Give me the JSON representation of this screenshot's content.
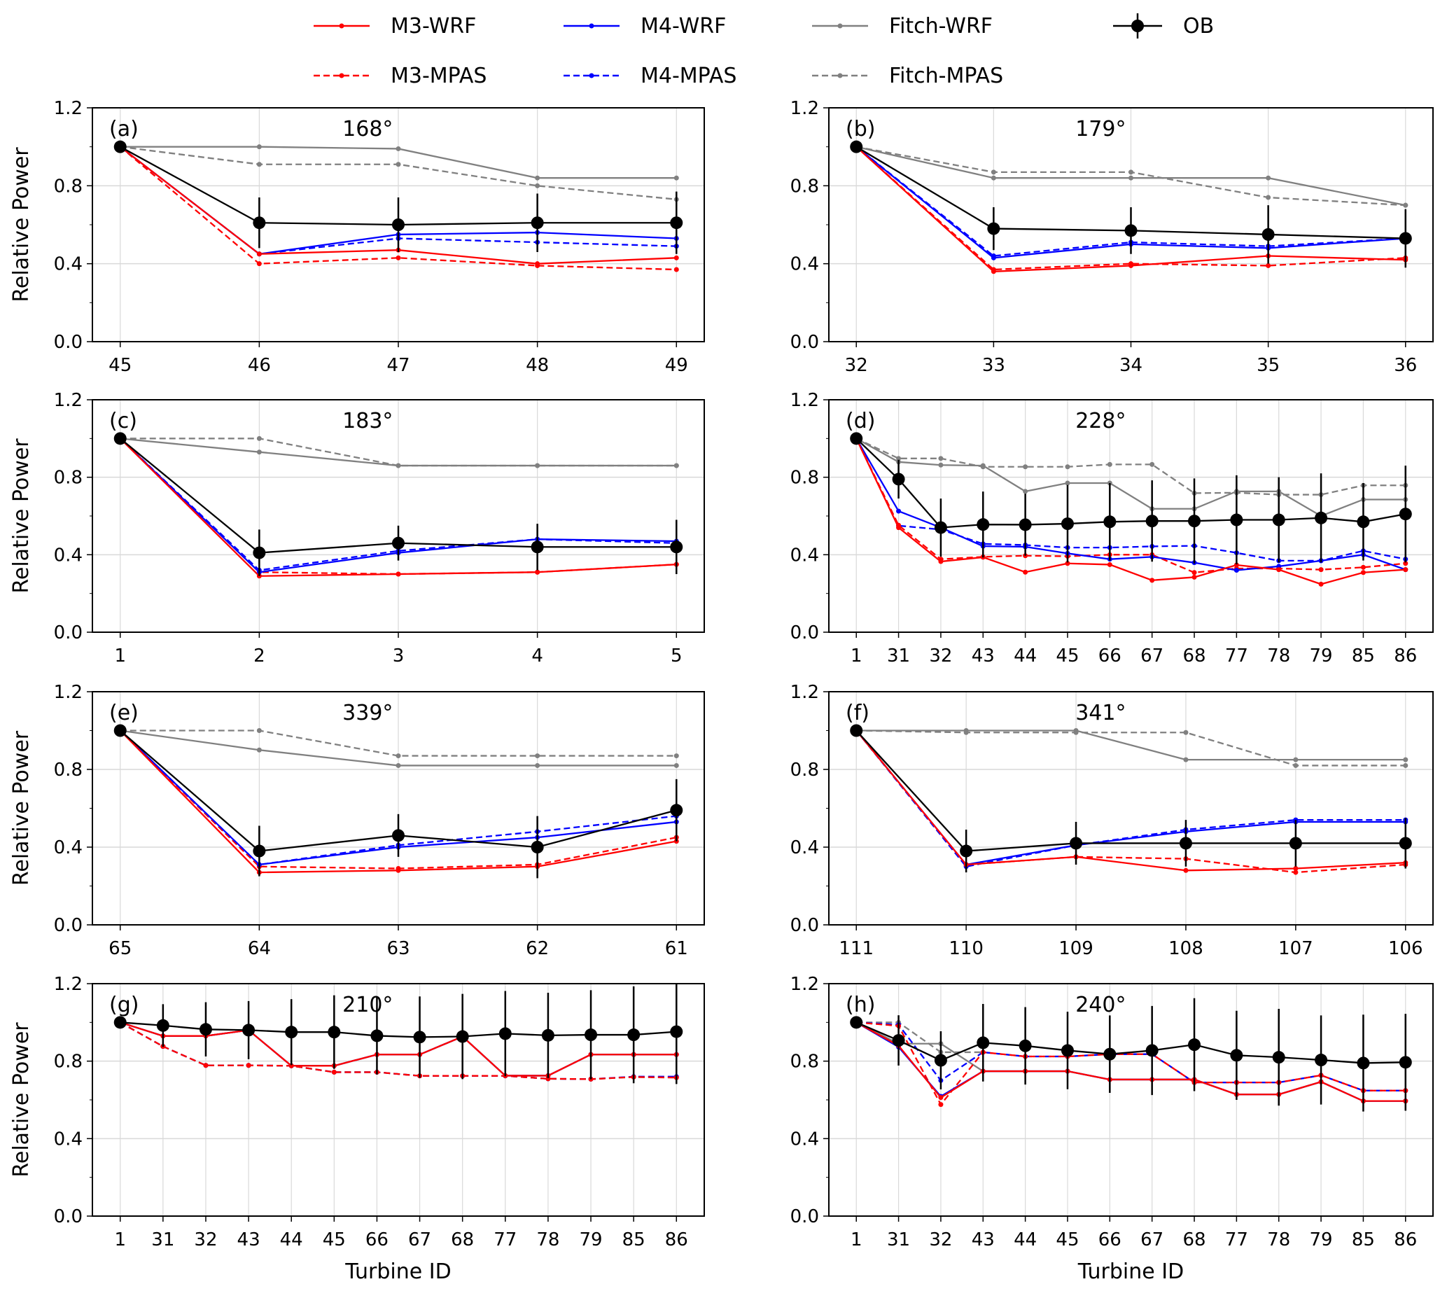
{
  "chart_data": {
    "type": "line",
    "legend": {
      "placement": "top-center",
      "entries": [
        {
          "name": "M3-WRF",
          "color": "#ff0000",
          "dash": false
        },
        {
          "name": "M4-WRF",
          "color": "#0000ff",
          "dash": false
        },
        {
          "name": "Fitch-WRF",
          "color": "#808080",
          "dash": false
        },
        {
          "name": "OB",
          "color": "#000000",
          "dash": false,
          "errorbar": true
        },
        {
          "name": "M3-MPAS",
          "color": "#ff0000",
          "dash": true
        },
        {
          "name": "M4-MPAS",
          "color": "#0000ff",
          "dash": true
        },
        {
          "name": "Fitch-MPAS",
          "color": "#808080",
          "dash": true
        }
      ]
    },
    "ylabel": "Relative Power",
    "xlabel": "Turbine ID",
    "ylim": [
      0,
      1.2
    ],
    "yticks": [
      "0.0",
      "0.4",
      "0.8",
      "1.2"
    ],
    "grid": true,
    "panels": [
      {
        "label": "(a)",
        "direction": "168°",
        "x": [
          "45",
          "46",
          "47",
          "48",
          "49"
        ],
        "series": {
          "M3-WRF": [
            1,
            0.45,
            0.47,
            0.4,
            0.43
          ],
          "M4-WRF": [
            1,
            0.45,
            0.55,
            0.56,
            0.53
          ],
          "Fitch-WRF": [
            1,
            1.0,
            0.99,
            0.84,
            0.84
          ],
          "M3-MPAS": [
            1,
            0.4,
            0.43,
            0.39,
            0.37
          ],
          "M4-MPAS": [
            1,
            0.45,
            0.53,
            0.51,
            0.49
          ],
          "Fitch-MPAS": [
            1,
            0.91,
            0.91,
            0.8,
            0.73
          ]
        },
        "OB": [
          1,
          0.61,
          0.6,
          0.61,
          0.61
        ],
        "OB_err": [
          0,
          0.13,
          0.14,
          0.15,
          0.16
        ]
      },
      {
        "label": "(b)",
        "direction": "179°",
        "x": [
          "32",
          "33",
          "34",
          "35",
          "36"
        ],
        "series": {
          "M3-WRF": [
            1,
            0.36,
            0.39,
            0.44,
            0.42
          ],
          "M4-WRF": [
            1,
            0.43,
            0.5,
            0.48,
            0.53
          ],
          "Fitch-WRF": [
            1,
            0.84,
            0.84,
            0.84,
            0.7
          ],
          "M3-MPAS": [
            1,
            0.37,
            0.4,
            0.39,
            0.43
          ],
          "M4-MPAS": [
            1,
            0.44,
            0.51,
            0.49,
            0.53
          ],
          "Fitch-MPAS": [
            1,
            0.87,
            0.87,
            0.74,
            0.7
          ]
        },
        "OB": [
          1,
          0.58,
          0.57,
          0.55,
          0.53
        ],
        "OB_err": [
          0,
          0.11,
          0.12,
          0.15,
          0.15
        ]
      },
      {
        "label": "(c)",
        "direction": "183°",
        "x": [
          "1",
          "2",
          "3",
          "4",
          "5"
        ],
        "series": {
          "M3-WRF": [
            1,
            0.29,
            0.3,
            0.31,
            0.35
          ],
          "M4-WRF": [
            1,
            0.31,
            0.41,
            0.48,
            0.47
          ],
          "Fitch-WRF": [
            1,
            0.93,
            0.86,
            0.86,
            0.86
          ],
          "M3-MPAS": [
            1,
            0.31,
            0.3,
            0.31,
            0.35
          ],
          "M4-MPAS": [
            1,
            0.32,
            0.42,
            0.48,
            0.46
          ],
          "Fitch-MPAS": [
            1,
            1.0,
            0.86,
            0.86,
            0.86
          ]
        },
        "OB": [
          1,
          0.41,
          0.46,
          0.44,
          0.44
        ],
        "OB_err": [
          0,
          0.12,
          0.09,
          0.12,
          0.14
        ]
      },
      {
        "label": "(d)",
        "direction": "228°",
        "x": [
          "1",
          "31",
          "32",
          "43",
          "44",
          "45",
          "66",
          "67",
          "68",
          "77",
          "78",
          "79",
          "85",
          "86"
        ],
        "series": {
          "M3-WRF": [
            1,
            0.54,
            0.365,
            0.387,
            0.31,
            0.355,
            0.349,
            0.268,
            0.284,
            0.347,
            0.323,
            0.248,
            0.308,
            0.323
          ],
          "M4-WRF": [
            1,
            0.625,
            0.54,
            0.444,
            0.441,
            0.407,
            0.377,
            0.389,
            0.359,
            0.32,
            0.34,
            0.369,
            0.4,
            0.323
          ],
          "Fitch-WRF": [
            1,
            0.879,
            0.863,
            0.86,
            0.727,
            0.77,
            0.77,
            0.637,
            0.637,
            0.727,
            0.727,
            0.6,
            0.685,
            0.685
          ],
          "M3-MPAS": [
            1,
            0.552,
            0.377,
            0.389,
            0.395,
            0.392,
            0.4,
            0.4,
            0.308,
            0.329,
            0.329,
            0.323,
            0.335,
            0.355
          ],
          "M4-MPAS": [
            1,
            0.55,
            0.53,
            0.456,
            0.45,
            0.437,
            0.437,
            0.443,
            0.446,
            0.41,
            0.369,
            0.369,
            0.42,
            0.377
          ],
          "Fitch-MPAS": [
            1,
            0.897,
            0.897,
            0.854,
            0.854,
            0.854,
            0.866,
            0.866,
            0.718,
            0.72,
            0.71,
            0.71,
            0.758,
            0.758
          ]
        },
        "OB": [
          1,
          0.79,
          0.54,
          0.556,
          0.555,
          0.56,
          0.57,
          0.574,
          0.574,
          0.58,
          0.58,
          0.59,
          0.57,
          0.61
        ],
        "OB_err": [
          0,
          0.1,
          0.15,
          0.17,
          0.16,
          0.2,
          0.2,
          0.21,
          0.22,
          0.23,
          0.22,
          0.23,
          0.2,
          0.25
        ]
      },
      {
        "label": "(e)",
        "direction": "339°",
        "x": [
          "65",
          "64",
          "63",
          "62",
          "61"
        ],
        "series": {
          "M3-WRF": [
            1,
            0.27,
            0.28,
            0.3,
            0.43
          ],
          "M4-WRF": [
            1,
            0.31,
            0.4,
            0.45,
            0.53
          ],
          "Fitch-WRF": [
            1,
            0.9,
            0.82,
            0.82,
            0.82
          ],
          "M3-MPAS": [
            1,
            0.3,
            0.29,
            0.31,
            0.45
          ],
          "M4-MPAS": [
            1,
            0.31,
            0.41,
            0.48,
            0.56
          ],
          "Fitch-MPAS": [
            1,
            1.0,
            0.87,
            0.87,
            0.87
          ]
        },
        "OB": [
          1,
          0.38,
          0.46,
          0.4,
          0.59
        ],
        "OB_err": [
          0,
          0.13,
          0.11,
          0.16,
          0.16
        ]
      },
      {
        "label": "(f)",
        "direction": "341°",
        "x": [
          "111",
          "110",
          "109",
          "108",
          "107",
          "106"
        ],
        "series": {
          "M3-WRF": [
            1,
            0.31,
            0.35,
            0.28,
            0.29,
            0.32
          ],
          "M4-WRF": [
            1,
            0.31,
            0.41,
            0.48,
            0.53,
            0.53
          ],
          "Fitch-WRF": [
            1,
            1.0,
            1.0,
            0.85,
            0.85,
            0.85
          ],
          "M3-MPAS": [
            1,
            0.31,
            0.35,
            0.34,
            0.27,
            0.31
          ],
          "M4-MPAS": [
            1,
            0.3,
            0.41,
            0.49,
            0.54,
            0.54
          ],
          "Fitch-MPAS": [
            1,
            0.99,
            0.99,
            0.99,
            0.82,
            0.82
          ]
        },
        "OB": [
          1,
          0.38,
          0.42,
          0.42,
          0.42,
          0.42
        ],
        "OB_err": [
          0,
          0.11,
          0.11,
          0.12,
          0.12,
          0.13
        ]
      },
      {
        "label": "(g)",
        "direction": "210°",
        "x": [
          "1",
          "31",
          "32",
          "43",
          "44",
          "45",
          "66",
          "67",
          "68",
          "77",
          "78",
          "79",
          "85",
          "86"
        ],
        "series": {
          "M3-WRF": [
            1,
            0.93,
            0.93,
            0.96,
            0.776,
            0.776,
            0.834,
            0.834,
            0.927,
            0.725,
            0.725,
            0.834,
            0.834,
            0.834
          ],
          "M4-WRF": [
            1,
            0.93,
            0.93,
            0.96,
            0.776,
            0.776,
            0.834,
            0.834,
            0.927,
            0.725,
            0.725,
            0.834,
            0.834,
            0.834
          ],
          "Fitch-WRF": [
            1,
            0.93,
            0.93,
            0.96,
            0.776,
            0.776,
            0.834,
            0.834,
            0.927,
            0.725,
            0.725,
            0.834,
            0.834,
            0.834
          ],
          "M3-MPAS": [
            1,
            0.876,
            0.778,
            0.778,
            0.776,
            0.743,
            0.743,
            0.724,
            0.724,
            0.724,
            0.709,
            0.707,
            0.718,
            0.715
          ],
          "M4-MPAS": [
            1,
            0.876,
            0.778,
            0.778,
            0.776,
            0.743,
            0.743,
            0.724,
            0.724,
            0.724,
            0.709,
            0.707,
            0.72,
            0.72
          ],
          "Fitch-MPAS": [
            1,
            0.876,
            0.778,
            0.778,
            0.776,
            0.743,
            0.743,
            0.724,
            0.724,
            0.724,
            0.709,
            0.707,
            0.718,
            0.715
          ]
        },
        "OB": [
          1,
          0.984,
          0.964,
          0.96,
          0.95,
          0.95,
          0.931,
          0.924,
          0.927,
          0.942,
          0.933,
          0.936,
          0.936,
          0.952
        ],
        "OB_err": [
          0,
          0.11,
          0.14,
          0.15,
          0.17,
          0.19,
          0.2,
          0.21,
          0.22,
          0.22,
          0.22,
          0.23,
          0.25,
          0.27
        ]
      },
      {
        "label": "(h)",
        "direction": "240°",
        "x": [
          "1",
          "31",
          "32",
          "43",
          "44",
          "45",
          "66",
          "67",
          "68",
          "77",
          "78",
          "79",
          "85",
          "86"
        ],
        "series": {
          "M3-WRF": [
            1,
            0.88,
            0.612,
            0.748,
            0.748,
            0.748,
            0.705,
            0.705,
            0.705,
            0.628,
            0.628,
            0.693,
            0.594,
            0.594
          ],
          "M4-WRF": [
            1,
            0.873,
            0.618,
            0.748,
            0.748,
            0.748,
            0.705,
            0.705,
            0.705,
            0.628,
            0.628,
            0.693,
            0.594,
            0.594
          ],
          "Fitch-WRF": [
            1,
            0.89,
            0.89,
            0.748,
            0.748,
            0.748,
            0.705,
            0.705,
            0.705,
            0.628,
            0.628,
            0.693,
            0.594,
            0.594
          ],
          "M3-MPAS": [
            1,
            0.982,
            0.576,
            0.846,
            0.824,
            0.824,
            0.836,
            0.836,
            0.69,
            0.69,
            0.69,
            0.727,
            0.648,
            0.648
          ],
          "M4-MPAS": [
            1,
            0.988,
            0.7,
            0.846,
            0.824,
            0.824,
            0.836,
            0.836,
            0.69,
            0.69,
            0.69,
            0.727,
            0.648,
            0.648
          ],
          "Fitch-MPAS": [
            1,
            1.0,
            0.846,
            0.846,
            0.824,
            0.824,
            0.836,
            0.836,
            0.69,
            0.69,
            0.69,
            0.727,
            0.648,
            0.648
          ]
        },
        "OB": [
          1,
          0.907,
          0.804,
          0.895,
          0.879,
          0.855,
          0.836,
          0.855,
          0.885,
          0.83,
          0.82,
          0.806,
          0.79,
          0.794
        ],
        "OB_err": [
          0,
          0.13,
          0.15,
          0.2,
          0.2,
          0.2,
          0.2,
          0.23,
          0.24,
          0.23,
          0.25,
          0.23,
          0.25,
          0.25
        ]
      }
    ]
  }
}
